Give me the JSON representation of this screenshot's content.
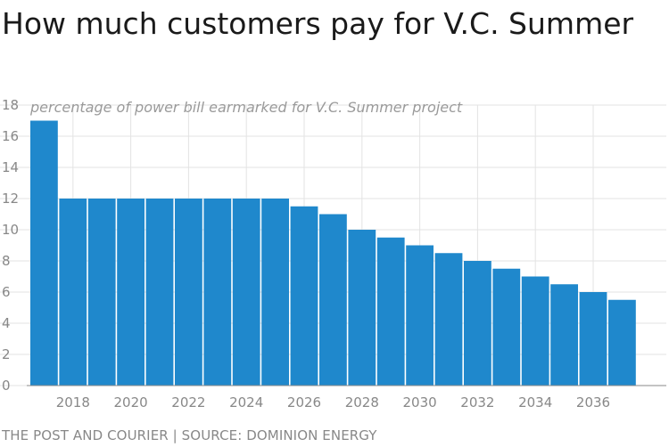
{
  "header": {
    "title": "How much customers pay for V.C. Summer"
  },
  "footer": {
    "credit": "THE POST AND COURIER | SOURCE: DOMINION ENERGY"
  },
  "colors": {
    "bar": "#1f88cc",
    "grid": "#e3e3e3",
    "axis": "#888888"
  },
  "chart_data": {
    "type": "bar",
    "subtitle": "percentage of power bill earmarked for V.C. Summer project",
    "categories": [
      2017,
      2018,
      2019,
      2020,
      2021,
      2022,
      2023,
      2024,
      2025,
      2026,
      2027,
      2028,
      2029,
      2030,
      2031,
      2032,
      2033,
      2034,
      2035,
      2036,
      2037
    ],
    "values": [
      17,
      12,
      12,
      12,
      12,
      12,
      12,
      12,
      12,
      11.5,
      11,
      10,
      9.5,
      9,
      8.5,
      8,
      7.5,
      7,
      6.5,
      6,
      5.5
    ],
    "x_tick_labels": [
      "2018",
      "2020",
      "2022",
      "2024",
      "2026",
      "2028",
      "2030",
      "2032",
      "2034",
      "2036"
    ],
    "y_ticks": [
      "0",
      "2",
      "4",
      "6",
      "8",
      "10",
      "12",
      "14",
      "16",
      "18"
    ],
    "ylim": [
      0,
      18
    ],
    "grid": true
  }
}
